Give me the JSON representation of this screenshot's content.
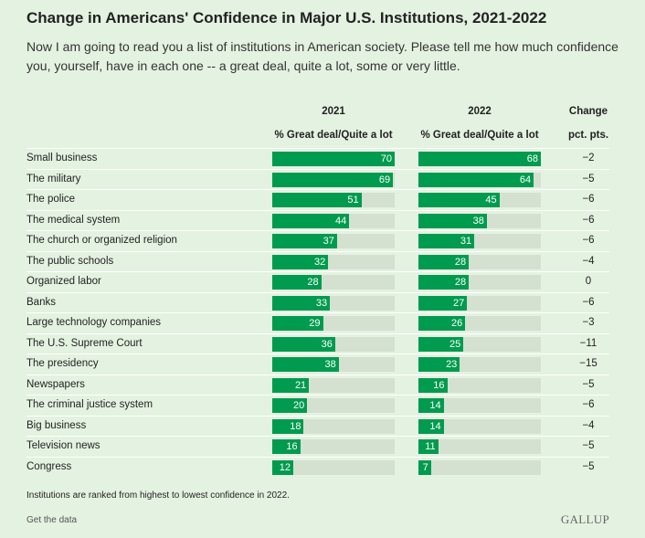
{
  "title": "Change in Americans' Confidence in Major U.S. Institutions, 2021-2022",
  "subtitle": "Now I am going to read you a list of institutions in American society. Please tell me how much confidence you, yourself, have in each one -- a great deal, quite a lot, some or very little.",
  "chart_data": {
    "type": "bar",
    "headers": {
      "col2021": "2021",
      "col2022": "2022",
      "change": "Change",
      "sub2021": "% Great deal/Quite a lot",
      "sub2022": "% Great deal/Quite a lot",
      "change_sub": "pct. pts."
    },
    "categories": [
      "Small business",
      "The military",
      "The police",
      "The medical system",
      "The church or organized religion",
      "The public schools",
      "Organized labor",
      "Banks",
      "Large technology companies",
      "The U.S. Supreme Court",
      "The presidency",
      "Newspapers",
      "The criminal justice system",
      "Big business",
      "Television news",
      "Congress"
    ],
    "series": [
      {
        "name": "2021",
        "values": [
          70,
          69,
          51,
          44,
          37,
          32,
          28,
          33,
          29,
          36,
          38,
          21,
          20,
          18,
          16,
          12
        ]
      },
      {
        "name": "2022",
        "values": [
          68,
          64,
          45,
          38,
          31,
          28,
          28,
          27,
          26,
          25,
          23,
          16,
          14,
          14,
          11,
          7
        ]
      }
    ],
    "change": [
      "−2",
      "−5",
      "−6",
      "−6",
      "−6",
      "−4",
      "0",
      "−6",
      "−3",
      "−11",
      "−15",
      "−5",
      "−6",
      "−4",
      "−5",
      "−5"
    ],
    "colors": {
      "bar": "#009b4e",
      "track": "#d4e0d0",
      "background": "#e4f2e1"
    }
  },
  "footer": {
    "note": "Institutions are ranked from highest to lowest confidence in 2022.",
    "get_data": "Get the data",
    "logo": "GALLUP"
  }
}
